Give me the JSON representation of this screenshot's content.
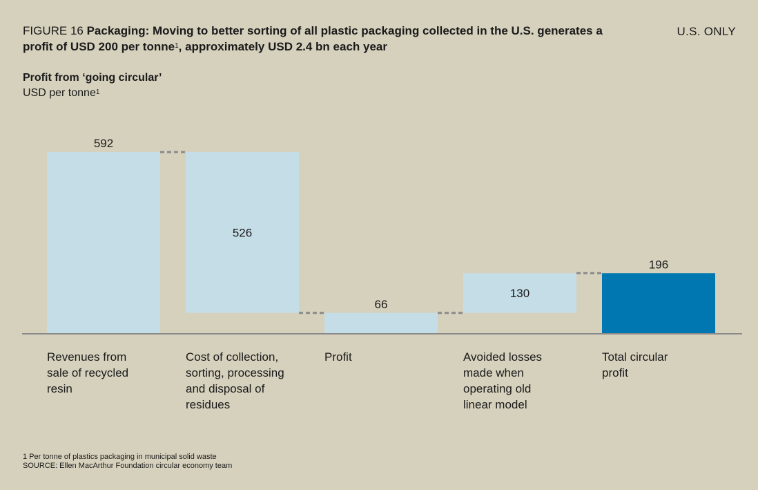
{
  "header": {
    "figure_label": "FIGURE 16",
    "title": "Packaging: Moving to better sorting of all plastic packaging collected in the U.S. generates a profit of USD 200 per tonne",
    "title_sup": "1",
    "title_tail": ", approximately USD 2.4 bn each year",
    "region": "U.S. ONLY"
  },
  "subtitle": {
    "title": "Profit from ‘going circular’",
    "unit": "USD per tonne",
    "unit_sup": "1"
  },
  "chart_data": {
    "type": "bar",
    "subtype": "waterfall",
    "categories": [
      "Revenues from sale of recycled resin",
      "Cost of collection, sorting, processing and disposal of residues",
      "Profit",
      "Avoided losses made when operating old linear model",
      "Total circular profit"
    ],
    "category_lines": [
      [
        "Revenues from",
        "sale of recycled",
        "resin"
      ],
      [
        "Cost of collection,",
        "sorting, processing",
        "and disposal of",
        "residues"
      ],
      [
        "Profit"
      ],
      [
        "Avoided losses",
        "made when",
        "operating old",
        "linear model"
      ],
      [
        "Total circular",
        "profit"
      ]
    ],
    "values": [
      592,
      526,
      66,
      130,
      196
    ],
    "value_labels": [
      "592",
      "526",
      "66",
      "130",
      "196"
    ],
    "bases": [
      0,
      66,
      0,
      66,
      0
    ],
    "ylim": [
      0,
      650
    ],
    "colors": {
      "light": "#c5dde7",
      "total": "#0077b0",
      "baseline": "#8a8a8a",
      "connector": "#8a8a8a"
    }
  },
  "footnotes": {
    "note1": "1  Per tonne of plastics packaging in municipal solid waste",
    "source": "SOURCE: Ellen MacArthur Foundation circular economy team"
  }
}
